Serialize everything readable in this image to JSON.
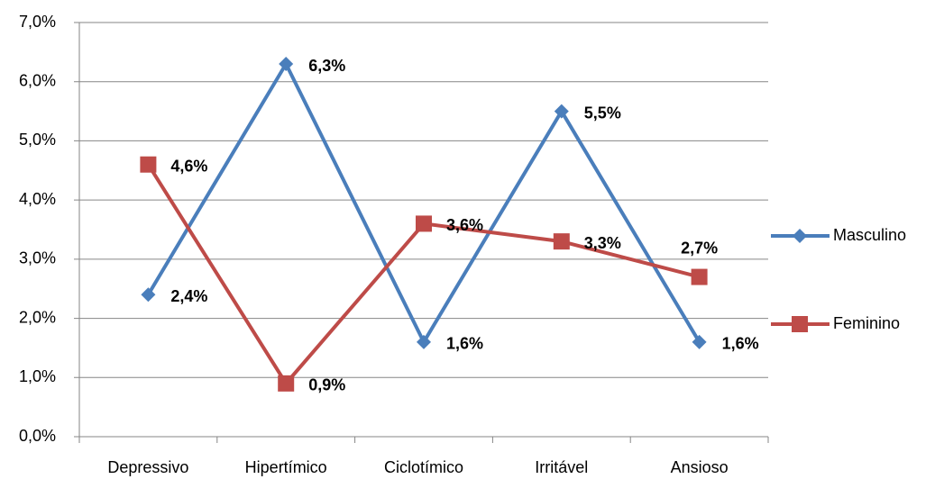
{
  "chart_data": {
    "type": "line",
    "categories": [
      "Depressivo",
      "Hipertímico",
      "Ciclotímico",
      "Irritável",
      "Ansioso"
    ],
    "series": [
      {
        "name": "Masculino",
        "color": "#4a7ebb",
        "marker": "diamond",
        "values": [
          2.4,
          6.3,
          1.6,
          5.5,
          1.6
        ],
        "value_labels": [
          "2,4%",
          "6,3%",
          "1,6%",
          "5,5%",
          "1,6%"
        ]
      },
      {
        "name": "Feminino",
        "color": "#be4b48",
        "marker": "square",
        "values": [
          4.6,
          0.9,
          3.6,
          3.3,
          2.7
        ],
        "value_labels": [
          "4,6%",
          "0,9%",
          "3,6%",
          "3,3%",
          "2,7%"
        ]
      }
    ],
    "ylim": [
      0,
      7
    ],
    "yticks": [
      {
        "value": 0,
        "label": "0,0%"
      },
      {
        "value": 1,
        "label": "1,0%"
      },
      {
        "value": 2,
        "label": "2,0%"
      },
      {
        "value": 3,
        "label": "3,0%"
      },
      {
        "value": 4,
        "label": "4,0%"
      },
      {
        "value": 5,
        "label": "5,0%"
      },
      {
        "value": 6,
        "label": "6,0%"
      },
      {
        "value": 7,
        "label": "7,0%"
      }
    ],
    "grid": true,
    "legend": "right"
  }
}
